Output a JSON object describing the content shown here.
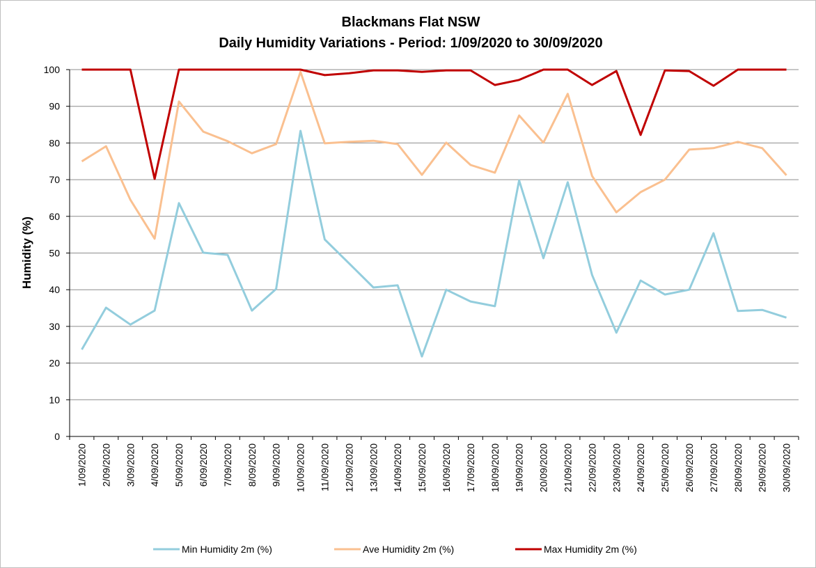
{
  "chart_data": {
    "type": "line",
    "title": "Blackmans Flat NSW",
    "subtitle": "Daily Humidity Variations - Period: 1/09/2020 to 30/09/2020",
    "y_label": "Humidity (%)",
    "categories": [
      "1/09/2020",
      "2/09/2020",
      "3/09/2020",
      "4/09/2020",
      "5/09/2020",
      "6/09/2020",
      "7/09/2020",
      "8/09/2020",
      "9/09/2020",
      "10/09/2020",
      "11/09/2020",
      "12/09/2020",
      "13/09/2020",
      "14/09/2020",
      "15/09/2020",
      "16/09/2020",
      "17/09/2020",
      "18/09/2020",
      "19/09/2020",
      "20/09/2020",
      "21/09/2020",
      "22/09/2020",
      "23/09/2020",
      "24/09/2020",
      "25/09/2020",
      "26/09/2020",
      "27/09/2020",
      "28/09/2020",
      "29/09/2020",
      "30/09/2020"
    ],
    "series": [
      {
        "name": "Min Humidity 2m (%)",
        "color": "#93cddd",
        "values": [
          23.7,
          35.1,
          30.5,
          34.3,
          63.6,
          50.1,
          49.5,
          34.3,
          40.2,
          83.3,
          53.7,
          47.2,
          40.6,
          41.2,
          21.8,
          40,
          36.8,
          35.5,
          69.8,
          48.6,
          69.3,
          44,
          28.3,
          42.5,
          38.7,
          40,
          55.4,
          34.2,
          34.5,
          32.4
        ]
      },
      {
        "name": "Ave Humidity 2m (%)",
        "color": "#fac090",
        "values": [
          75,
          79.1,
          64.5,
          53.9,
          91.3,
          83.1,
          80.5,
          77.2,
          79.7,
          99.4,
          79.9,
          80.3,
          80.6,
          79.7,
          71.3,
          80.1,
          74,
          71.9,
          87.5,
          80.1,
          93.4,
          71,
          61.1,
          66.6,
          70,
          78.2,
          78.6,
          80.3,
          78.6,
          71.2
        ]
      },
      {
        "name": "Max Humidity 2m (%)",
        "color": "#c00000",
        "values": [
          100,
          100,
          100,
          70.2,
          100,
          100,
          100,
          100,
          100,
          100,
          98.5,
          99,
          99.8,
          99.8,
          99.4,
          99.8,
          99.8,
          95.8,
          97.2,
          100,
          100,
          95.8,
          99.6,
          82.2,
          99.8,
          99.6,
          95.6,
          100,
          100,
          100
        ]
      }
    ],
    "ylim": [
      0,
      100
    ],
    "yticks": [
      0,
      10,
      20,
      30,
      40,
      50,
      60,
      70,
      80,
      90,
      100
    ],
    "grid": true,
    "legend": "bottom"
  }
}
